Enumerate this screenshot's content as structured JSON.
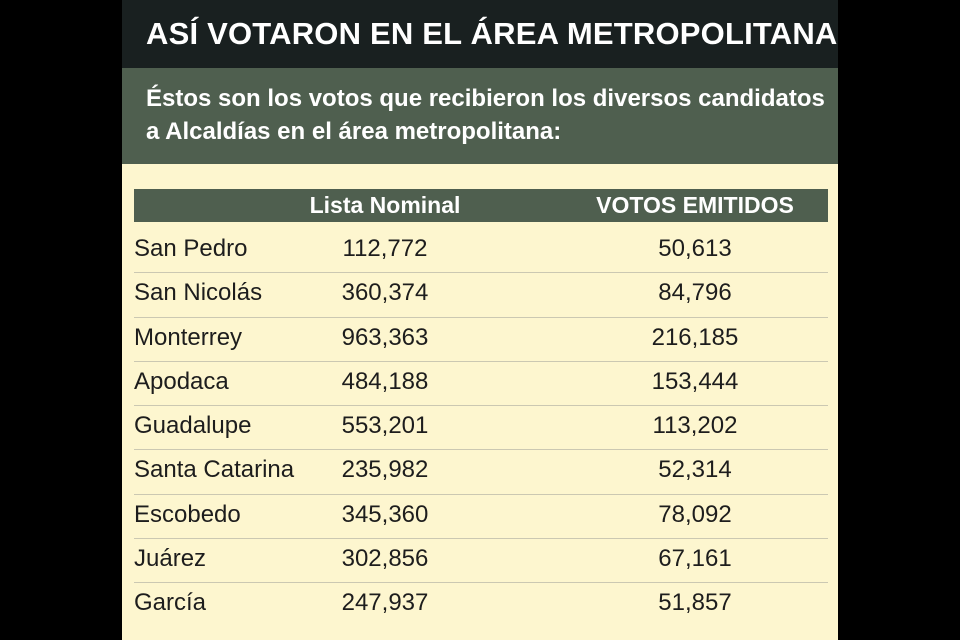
{
  "title": "ASÍ VOTARON EN EL ÁREA METROPOLITANA",
  "subtitle": "Éstos son los votos que recibieron los diversos candidatos a Alcaldías en el área metropolitana:",
  "table": {
    "headers": [
      "",
      "Lista Nominal",
      "VOTOS EMITIDOS"
    ],
    "rows": [
      {
        "city": "San Pedro",
        "lista_nominal": "112,772",
        "votos_emitidos": "50,613"
      },
      {
        "city": "San Nicolás",
        "lista_nominal": "360,374",
        "votos_emitidos": "84,796"
      },
      {
        "city": "Monterrey",
        "lista_nominal": "963,363",
        "votos_emitidos": "216,185"
      },
      {
        "city": "Apodaca",
        "lista_nominal": "484,188",
        "votos_emitidos": "153,444"
      },
      {
        "city": "Guadalupe",
        "lista_nominal": "553,201",
        "votos_emitidos": "113,202"
      },
      {
        "city": "Santa Catarina",
        "lista_nominal": "235,982",
        "votos_emitidos": "52,314"
      },
      {
        "city": "Escobedo",
        "lista_nominal": "345,360",
        "votos_emitidos": "78,092"
      },
      {
        "city": "Juárez",
        "lista_nominal": "302,856",
        "votos_emitidos": "67,161"
      },
      {
        "city": "García",
        "lista_nominal": "247,937",
        "votos_emitidos": "51,857"
      }
    ]
  },
  "colors": {
    "title_bg": "#192020",
    "subtitle_bg": "#4f5f4f",
    "header_bg": "#4f5f4f",
    "card_bg": "#fdf6cf",
    "outer_bg": "#000000"
  }
}
